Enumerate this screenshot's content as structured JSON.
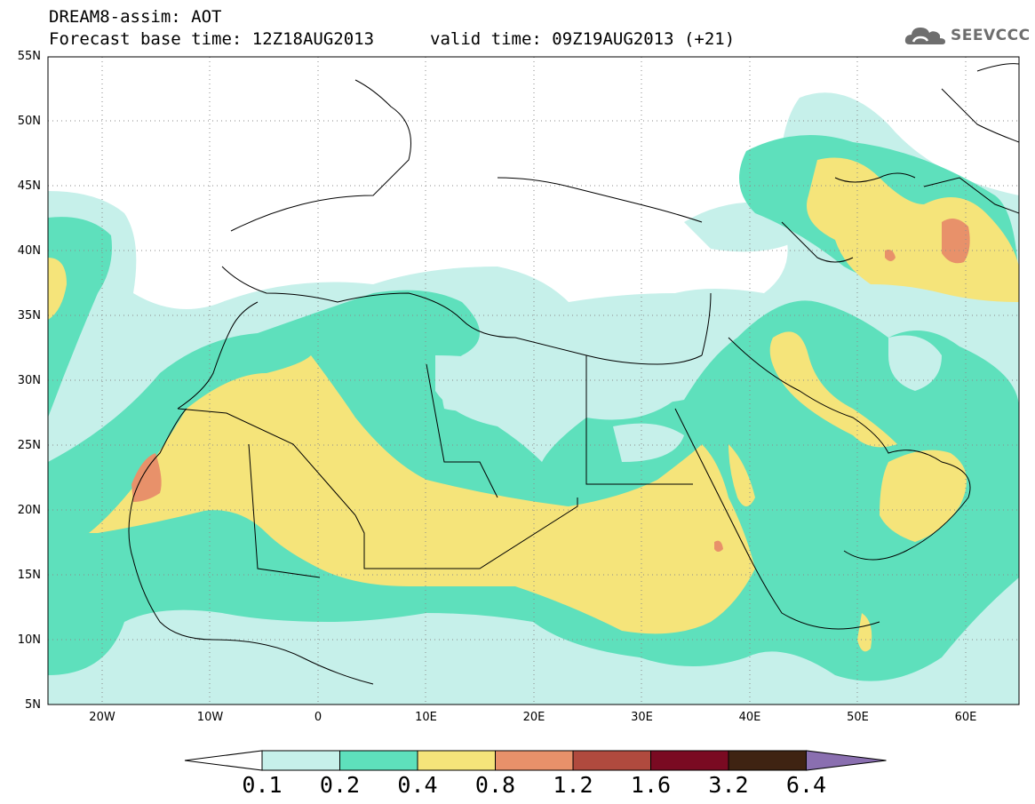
{
  "header": {
    "title": "DREAM8-assim: AOT",
    "base_time": "Forecast base time: 12Z18AUG2013",
    "valid_time": "valid time: 09Z19AUG2013 (+21)"
  },
  "logo": {
    "text": "SEEVCCC",
    "icon": "cloud-icon"
  },
  "map": {
    "lat_labels": [
      "55N",
      "50N",
      "45N",
      "40N",
      "35N",
      "30N",
      "25N",
      "20N",
      "15N",
      "10N",
      "5N"
    ],
    "lon_labels": [
      "20W",
      "10W",
      "0",
      "10E",
      "20E",
      "30E",
      "40E",
      "50E",
      "60E"
    ]
  },
  "colorbar": {
    "labels": [
      "0.1",
      "0.2",
      "0.4",
      "0.8",
      "1.2",
      "1.6",
      "3.2",
      "6.4"
    ],
    "colors": [
      "#c6f0ea",
      "#5ee0bc",
      "#f5e47a",
      "#e8916a",
      "#b04a3e",
      "#7a0a22",
      "#3f2312",
      "#8a6fb0"
    ]
  }
}
